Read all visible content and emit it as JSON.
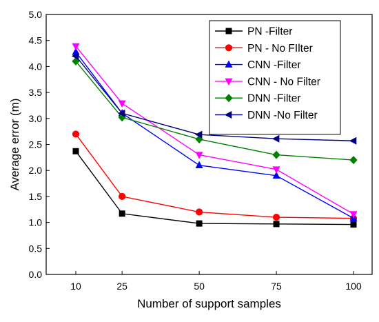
{
  "chart_data": {
    "type": "line",
    "title": "",
    "xlabel": "Number of support samples",
    "ylabel": "Average error (m)",
    "x": [
      10,
      25,
      50,
      75,
      100
    ],
    "x_tick_labels": [
      "10",
      "25",
      "50",
      "75",
      "100"
    ],
    "ylim": [
      0.0,
      5.0
    ],
    "y_ticks": [
      0.0,
      0.5,
      1.0,
      1.5,
      2.0,
      2.5,
      3.0,
      3.5,
      4.0,
      4.5,
      5.0
    ],
    "y_tick_labels": [
      "0.0",
      "0.5",
      "1.0",
      "1.5",
      "2.0",
      "2.5",
      "3.0",
      "3.5",
      "4.0",
      "4.5",
      "5.0"
    ],
    "grid": false,
    "legend_position": "top-right",
    "series": [
      {
        "name": "PN -Filter",
        "color": "#000000",
        "marker": "square",
        "values": [
          2.37,
          1.17,
          0.98,
          0.97,
          0.96
        ]
      },
      {
        "name": "PN - No FIlter",
        "color": "#ff0000",
        "marker": "circle",
        "values": [
          2.7,
          1.5,
          1.2,
          1.1,
          1.08
        ]
      },
      {
        "name": "CNN -Filter",
        "color": "#0000ff",
        "marker": "triangle-up",
        "values": [
          4.28,
          3.1,
          2.1,
          1.9,
          1.08
        ]
      },
      {
        "name": "CNN - No Filter",
        "color": "#ff00ff",
        "marker": "triangle-down",
        "values": [
          4.39,
          3.29,
          2.3,
          2.02,
          1.16
        ]
      },
      {
        "name": "DNN -Filter",
        "color": "#008000",
        "marker": "diamond",
        "values": [
          4.1,
          3.02,
          2.6,
          2.3,
          2.2
        ]
      },
      {
        "name": "DNN -No Filter",
        "color": "#000080",
        "marker": "triangle-left",
        "values": [
          4.2,
          3.1,
          2.69,
          2.61,
          2.57
        ]
      }
    ]
  }
}
